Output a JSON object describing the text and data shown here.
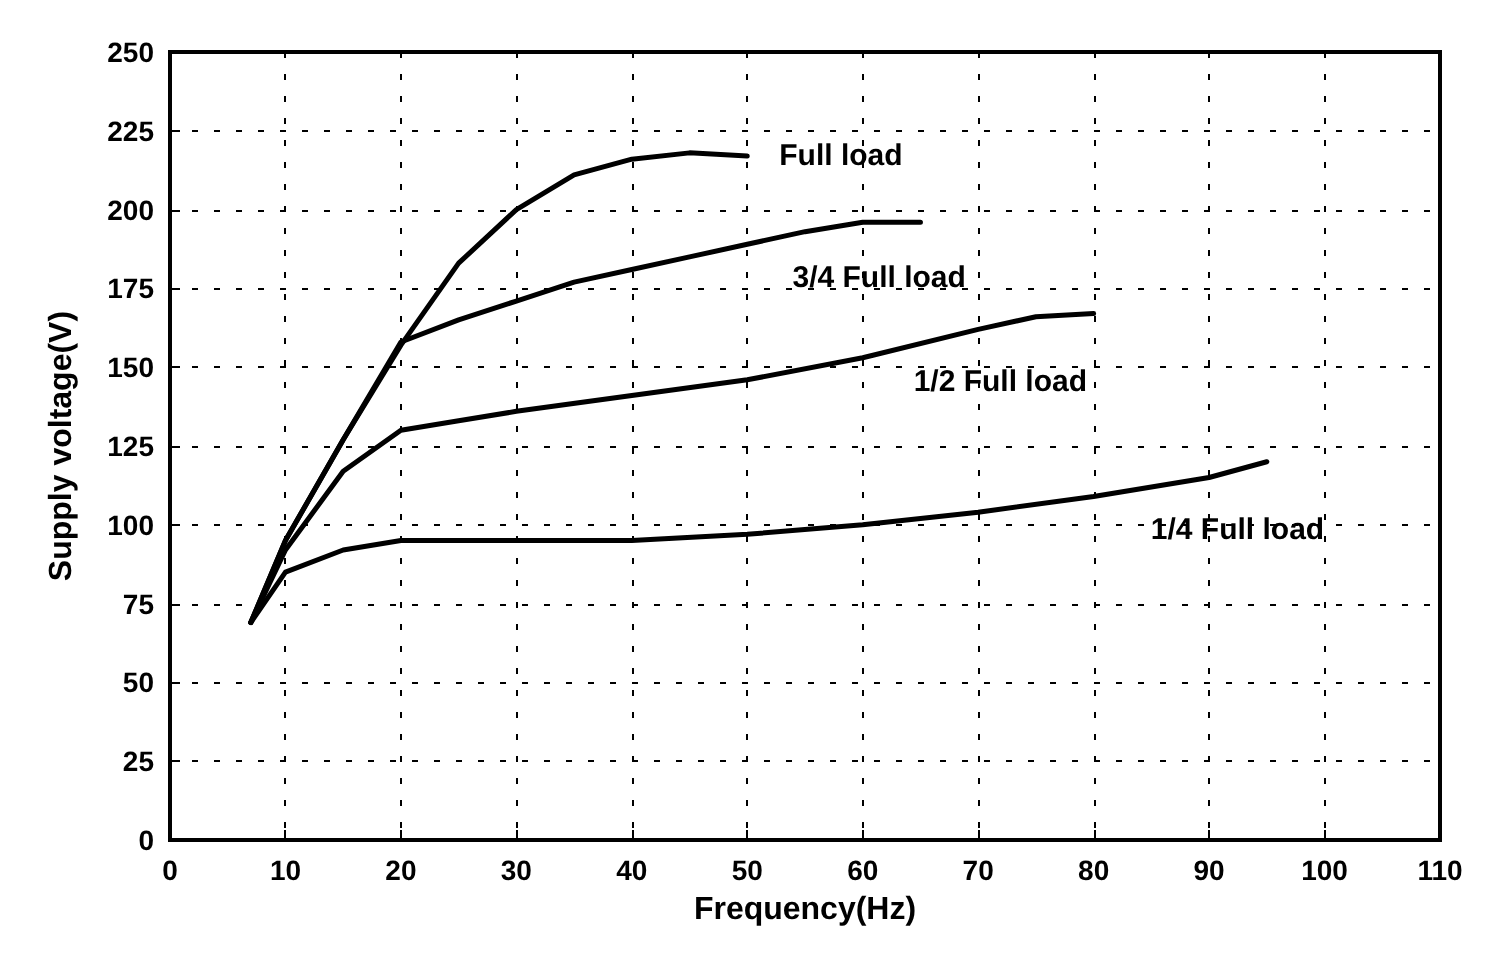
{
  "chart_data": {
    "type": "line",
    "xlabel": "Frequency(Hz)",
    "ylabel": "Supply voltage(V)",
    "xlim": [
      0,
      110
    ],
    "xticks": [
      0,
      10,
      20,
      30,
      40,
      50,
      60,
      70,
      80,
      90,
      100,
      110
    ],
    "ylim": [
      0,
      250
    ],
    "yticks": [
      0,
      25,
      50,
      75,
      100,
      125,
      150,
      175,
      200,
      225,
      250
    ],
    "grid": true,
    "legend": false,
    "marker": "none",
    "line_style": "solid",
    "series": [
      {
        "name": "Full load",
        "color": "#000000",
        "x": [
          7,
          10,
          15,
          20,
          25,
          30,
          35,
          40,
          45,
          50
        ],
        "values": [
          69,
          95,
          127,
          157,
          183,
          200,
          211,
          216,
          218,
          217
        ]
      },
      {
        "name": "3/4 Full load",
        "color": "#000000",
        "x": [
          7,
          10,
          15,
          20,
          25,
          30,
          35,
          40,
          45,
          50,
          55,
          60,
          65
        ],
        "values": [
          69,
          95,
          127,
          158,
          165,
          171,
          177,
          181,
          185,
          189,
          193,
          196,
          196
        ]
      },
      {
        "name": "1/2 Full load",
        "color": "#000000",
        "x": [
          7,
          10,
          15,
          20,
          25,
          30,
          40,
          50,
          60,
          70,
          75,
          80
        ],
        "values": [
          69,
          92,
          117,
          130,
          133,
          136,
          141,
          146,
          153,
          162,
          166,
          167
        ]
      },
      {
        "name": "1/4 Full load",
        "color": "#000000",
        "x": [
          7,
          10,
          15,
          20,
          30,
          40,
          50,
          60,
          70,
          80,
          90,
          95
        ],
        "values": [
          69,
          85,
          92,
          95,
          95,
          95,
          97,
          100,
          104,
          109,
          115,
          120
        ]
      }
    ]
  }
}
